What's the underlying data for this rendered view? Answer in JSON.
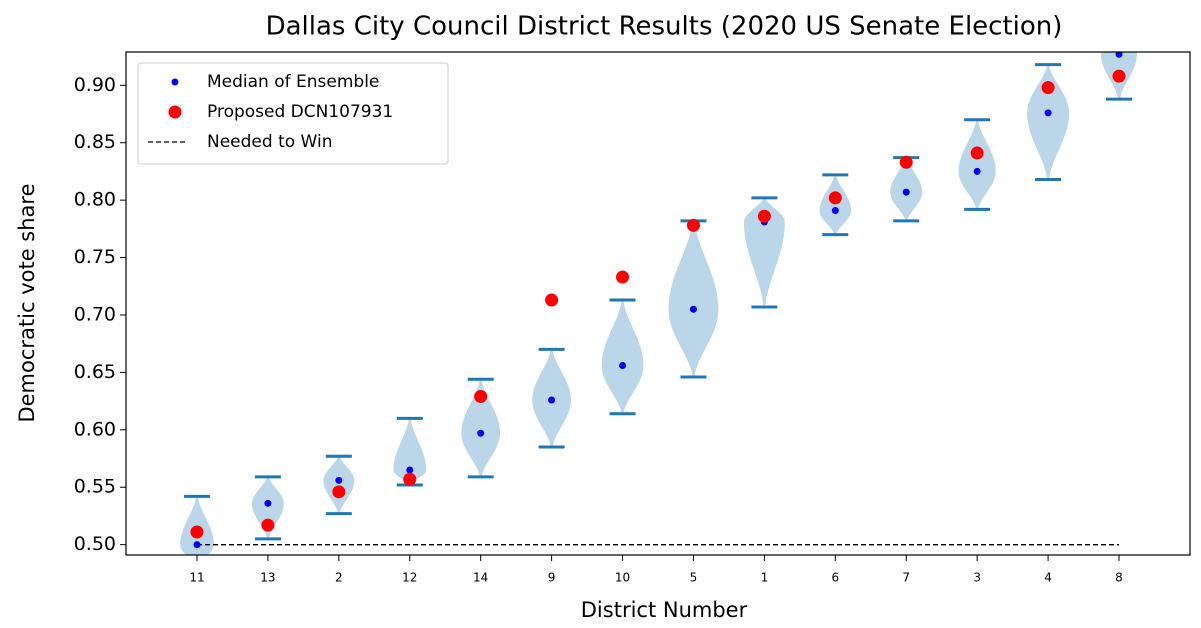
{
  "chart_data": {
    "type": "violin",
    "title": "Dallas City Council District Results  (2020 US Senate Election)",
    "xlabel": "District Number",
    "ylabel": "Democratic vote share",
    "categories": [
      "11",
      "13",
      "2",
      "12",
      "14",
      "9",
      "10",
      "5",
      "1",
      "6",
      "7",
      "3",
      "4",
      "8"
    ],
    "series": [
      {
        "name": "Median of Ensemble",
        "color": "#0000ff",
        "values": [
          0.5,
          0.536,
          0.556,
          0.565,
          0.597,
          0.626,
          0.656,
          0.705,
          0.781,
          0.791,
          0.807,
          0.825,
          0.876,
          0.927
        ]
      },
      {
        "name": "Proposed DCN107931",
        "color": "#ff0000",
        "values": [
          0.511,
          0.517,
          0.546,
          0.557,
          0.629,
          0.713,
          0.733,
          0.778,
          0.786,
          0.802,
          0.833,
          0.841,
          0.898,
          0.908
        ]
      }
    ],
    "maxs": [
      0.542,
      0.559,
      0.577,
      0.61,
      0.644,
      0.67,
      0.713,
      0.782,
      0.802,
      0.822,
      0.837,
      0.87,
      0.918,
      0.96
    ],
    "mins": [
      0.48,
      0.505,
      0.527,
      0.552,
      0.559,
      0.585,
      0.614,
      0.646,
      0.707,
      0.77,
      0.782,
      0.792,
      0.818,
      0.888
    ],
    "violin_color": "#1f77b4",
    "threshold": {
      "name": "Needed to Win",
      "value": 0.5,
      "color": "#000000"
    },
    "ylim": [
      0.491,
      0.929
    ],
    "yticks": [
      {
        "value": 0.5,
        "label": "0.50"
      },
      {
        "value": 0.55,
        "label": "0.55"
      },
      {
        "value": 0.6,
        "label": "0.60"
      },
      {
        "value": 0.65,
        "label": "0.65"
      },
      {
        "value": 0.7,
        "label": "0.70"
      },
      {
        "value": 0.75,
        "label": "0.75"
      },
      {
        "value": 0.8,
        "label": "0.80"
      },
      {
        "value": 0.85,
        "label": "0.85"
      },
      {
        "value": 0.9,
        "label": "0.90"
      }
    ],
    "legend": "upper left"
  }
}
